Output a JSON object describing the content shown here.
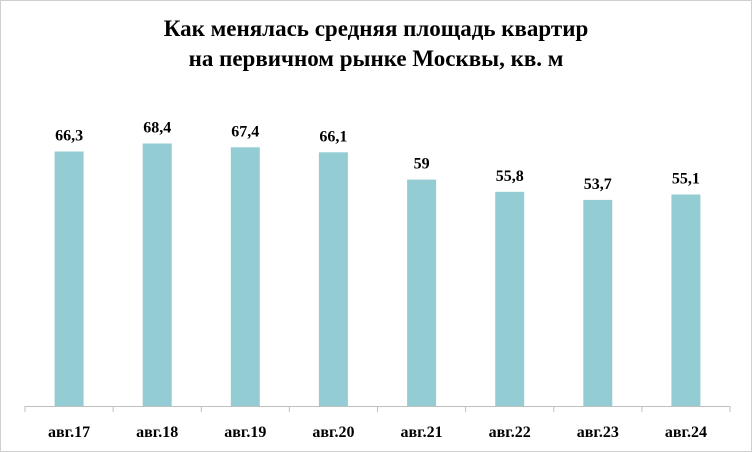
{
  "chart_data": {
    "type": "bar",
    "title_line1": "Как менялась средняя площадь квартир",
    "title_line2": "на первичном рынке Москвы, кв. м",
    "categories": [
      "авг.17",
      "авг.18",
      "авг.19",
      "авг.20",
      "авг.21",
      "авг.22",
      "авг.23",
      "авг.24"
    ],
    "values": [
      66.3,
      68.4,
      67.4,
      66.1,
      59,
      55.8,
      53.7,
      55.1
    ],
    "value_labels": [
      "66,3",
      "68,4",
      "67,4",
      "66,1",
      "59",
      "55,8",
      "53,7",
      "55,1"
    ],
    "ylim": [
      0,
      76
    ],
    "grid": false,
    "legend": "none",
    "bar_color": "#93cdd3",
    "axis_color": "#bfbfbf"
  }
}
